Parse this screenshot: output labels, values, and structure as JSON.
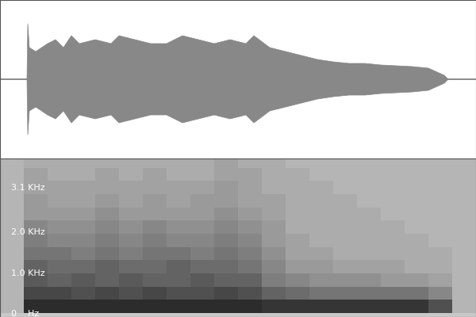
{
  "chart_data": [
    {
      "type": "area",
      "color": "#888888",
      "tick_labels": false,
      "x": [
        0,
        3.4,
        3.5,
        3.7,
        4.5,
        6,
        7,
        8,
        9,
        10,
        12,
        14,
        15,
        17,
        19,
        21,
        23,
        25,
        27,
        29,
        31,
        32,
        34,
        36,
        38,
        40,
        42,
        44,
        46,
        48,
        50,
        52,
        54,
        56,
        56.5,
        60
      ],
      "values": [
        0,
        0,
        0.7,
        0.4,
        0.35,
        0.45,
        0.5,
        0.4,
        0.55,
        0.45,
        0.5,
        0.45,
        0.55,
        0.5,
        0.45,
        0.45,
        0.55,
        0.5,
        0.45,
        0.5,
        0.45,
        0.55,
        0.4,
        0.35,
        0.3,
        0.25,
        0.22,
        0.2,
        0.2,
        0.18,
        0.17,
        0.16,
        0.14,
        0.05,
        0,
        0
      ],
      "xlim": [
        0,
        60
      ],
      "ylim": [
        -1,
        1
      ]
    },
    {
      "type": "heatmap",
      "tick_labels": "y",
      "xlim": [
        0,
        60
      ],
      "ylim": [
        -0.1,
        3.8
      ],
      "yticks": [
        {
          "value": 0,
          "label": "0    Hz"
        },
        {
          "value": 1.0,
          "label": "1.0 KHz"
        },
        {
          "value": 2.0,
          "label": "2.0 KHz"
        },
        {
          "value": 3.1,
          "label": "3.1 KHz"
        }
      ],
      "x_edges": [
        0,
        3,
        6,
        9,
        12,
        15,
        18,
        21,
        24,
        27,
        30,
        33,
        36,
        39,
        42,
        45,
        48,
        51,
        54,
        57,
        60
      ],
      "y_edges": [
        0,
        0.325,
        0.65,
        0.975,
        1.3,
        1.625,
        1.95,
        2.275,
        2.6,
        2.925,
        3.25,
        3.575,
        3.9
      ],
      "color_range": [
        0,
        1
      ],
      "cells": [
        [
          0.15,
          0.9,
          0.9,
          0.9,
          0.9,
          0.9,
          0.9,
          0.9,
          0.9,
          0.9,
          0.9,
          0.85,
          0.85,
          0.85,
          0.85,
          0.85,
          0.85,
          0.85,
          0.7,
          0.15
        ],
        [
          0.15,
          0.75,
          0.75,
          0.7,
          0.75,
          0.7,
          0.75,
          0.7,
          0.7,
          0.75,
          0.7,
          0.6,
          0.55,
          0.5,
          0.5,
          0.5,
          0.5,
          0.5,
          0.4,
          0.15
        ],
        [
          0.15,
          0.65,
          0.6,
          0.65,
          0.6,
          0.65,
          0.6,
          0.6,
          0.65,
          0.6,
          0.6,
          0.45,
          0.4,
          0.35,
          0.35,
          0.35,
          0.3,
          0.3,
          0.25,
          0.15
        ],
        [
          0.15,
          0.6,
          0.55,
          0.55,
          0.6,
          0.55,
          0.55,
          0.6,
          0.55,
          0.55,
          0.5,
          0.4,
          0.3,
          0.3,
          0.25,
          0.25,
          0.25,
          0.2,
          0.2,
          0.15
        ],
        [
          0.15,
          0.5,
          0.5,
          0.45,
          0.5,
          0.45,
          0.5,
          0.5,
          0.45,
          0.5,
          0.45,
          0.35,
          0.25,
          0.25,
          0.2,
          0.2,
          0.2,
          0.2,
          0.2,
          0.15
        ],
        [
          0.15,
          0.45,
          0.4,
          0.4,
          0.45,
          0.4,
          0.45,
          0.4,
          0.4,
          0.45,
          0.4,
          0.3,
          0.25,
          0.2,
          0.2,
          0.2,
          0.2,
          0.2,
          0.15,
          0.15
        ],
        [
          0.15,
          0.4,
          0.35,
          0.35,
          0.4,
          0.35,
          0.4,
          0.35,
          0.35,
          0.4,
          0.35,
          0.3,
          0.2,
          0.2,
          0.2,
          0.2,
          0.2,
          0.15,
          0.15,
          0.15
        ],
        [
          0.15,
          0.3,
          0.3,
          0.3,
          0.35,
          0.3,
          0.3,
          0.3,
          0.3,
          0.35,
          0.3,
          0.25,
          0.2,
          0.2,
          0.2,
          0.2,
          0.15,
          0.15,
          0.15,
          0.15
        ],
        [
          0.15,
          0.3,
          0.25,
          0.25,
          0.3,
          0.25,
          0.3,
          0.25,
          0.3,
          0.3,
          0.25,
          0.25,
          0.2,
          0.2,
          0.2,
          0.15,
          0.15,
          0.15,
          0.15,
          0.15
        ],
        [
          0.15,
          0.25,
          0.25,
          0.25,
          0.25,
          0.25,
          0.25,
          0.25,
          0.25,
          0.3,
          0.25,
          0.2,
          0.2,
          0.2,
          0.15,
          0.15,
          0.15,
          0.15,
          0.15,
          0.15
        ],
        [
          0.15,
          0.25,
          0.2,
          0.2,
          0.25,
          0.2,
          0.25,
          0.2,
          0.2,
          0.25,
          0.25,
          0.2,
          0.2,
          0.15,
          0.15,
          0.15,
          0.15,
          0.15,
          0.15,
          0.15
        ],
        [
          0.15,
          0.2,
          0.2,
          0.2,
          0.2,
          0.2,
          0.2,
          0.2,
          0.2,
          0.25,
          0.2,
          0.2,
          0.15,
          0.15,
          0.15,
          0.15,
          0.15,
          0.15,
          0.15,
          0.15
        ]
      ]
    }
  ]
}
